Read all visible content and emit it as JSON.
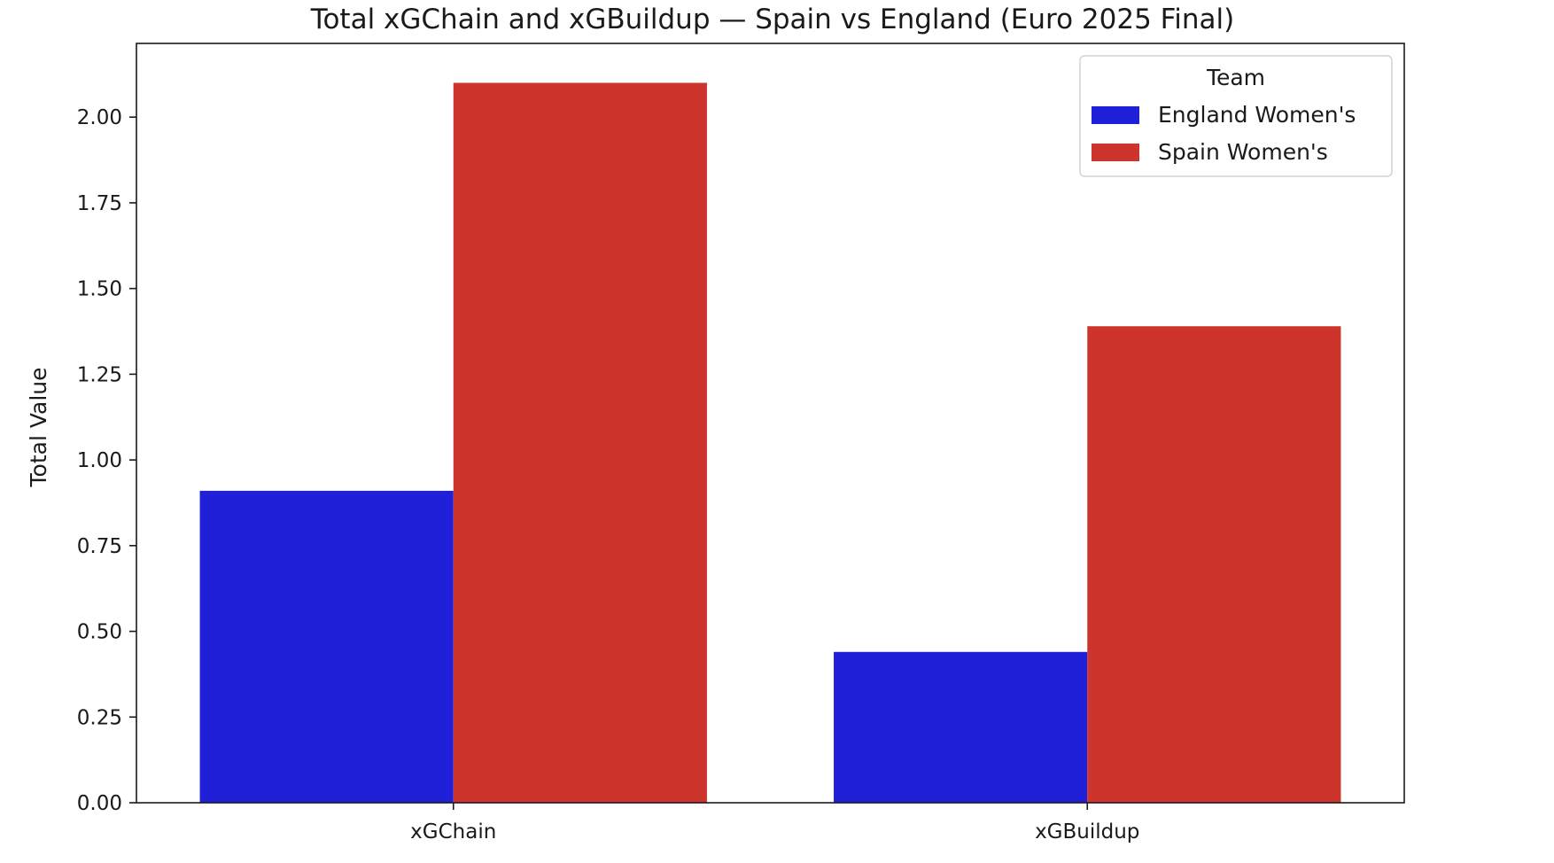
{
  "chart_data": {
    "type": "bar",
    "title": "Total xGChain and xGBuildup — Spain vs England (Euro 2025 Final)",
    "xlabel": "",
    "ylabel": "Total Value",
    "categories": [
      "xGChain",
      "xGBuildup"
    ],
    "series": [
      {
        "name": "England Women's",
        "color": "#2020d8",
        "values": [
          0.91,
          0.44
        ]
      },
      {
        "name": "Spain Women's",
        "color": "#cd352c",
        "values": [
          2.1,
          1.39
        ]
      }
    ],
    "ylim": [
      0,
      2.215
    ],
    "yticks": [
      0.0,
      0.25,
      0.5,
      0.75,
      1.0,
      1.25,
      1.5,
      1.75,
      2.0
    ],
    "ytick_labels": [
      "0.00",
      "0.25",
      "0.50",
      "0.75",
      "1.00",
      "1.25",
      "1.50",
      "1.75",
      "2.00"
    ],
    "legend": {
      "title": "Team",
      "placement": "top-right"
    },
    "grid": false
  }
}
